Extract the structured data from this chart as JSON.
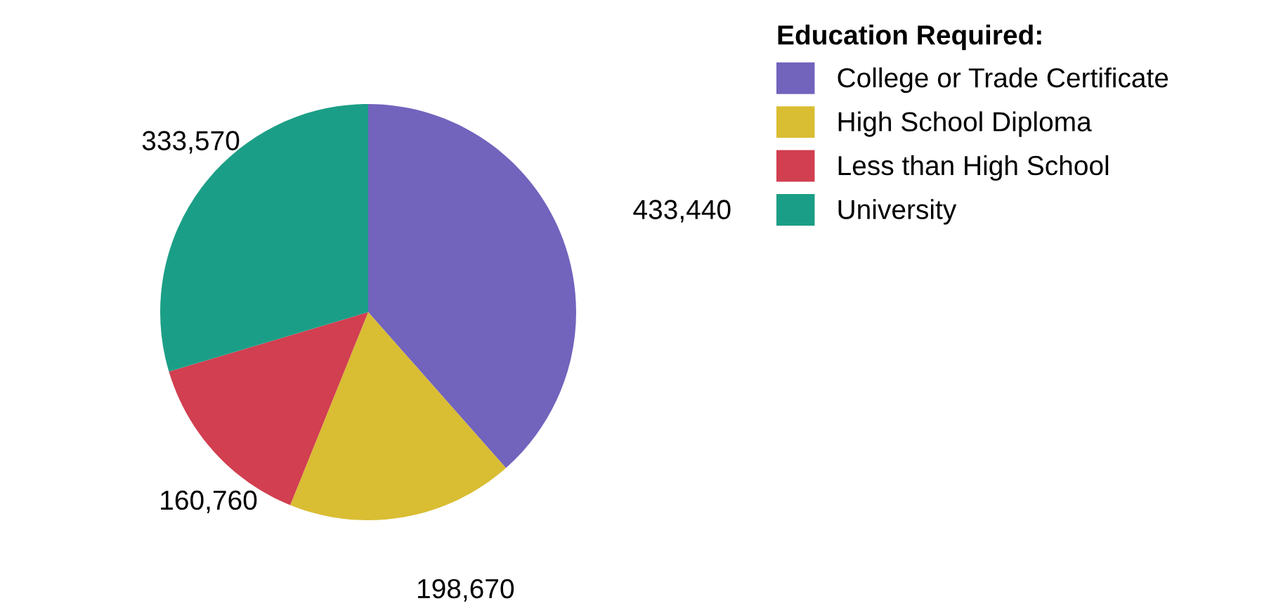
{
  "chart_data": {
    "type": "pie",
    "legend_title": "Education Required:",
    "categories": [
      "College or Trade Certificate",
      "High School Diploma",
      "Less than High School",
      "University"
    ],
    "values": [
      433440,
      198670,
      160760,
      333570
    ],
    "value_labels": [
      "433,440",
      "198,670",
      "160,760",
      "333,570"
    ],
    "colors": [
      "#7263bd",
      "#d9bd33",
      "#d13f50",
      "#1b9e87"
    ],
    "legend": "right"
  }
}
